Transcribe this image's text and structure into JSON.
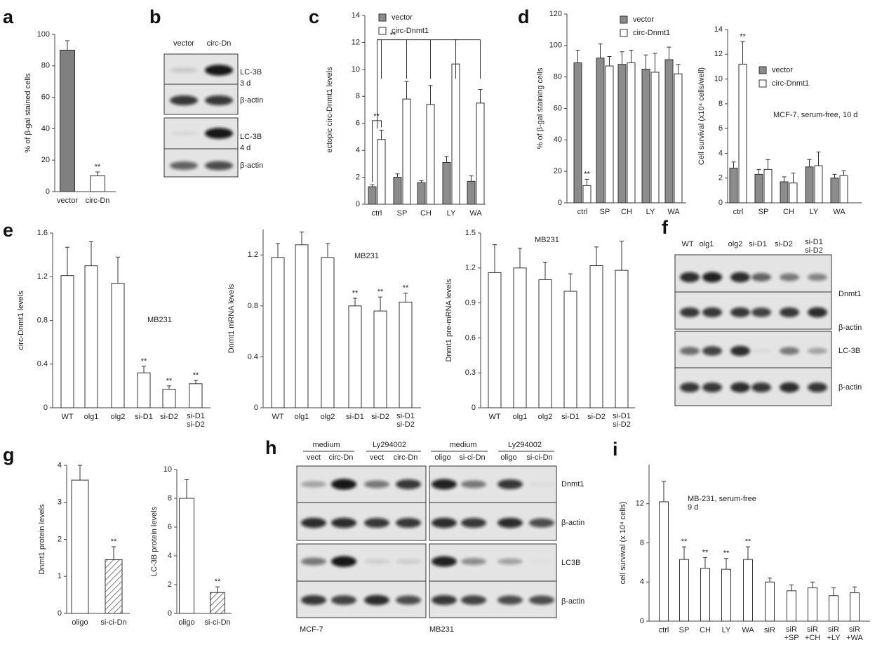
{
  "panels": [
    "a",
    "b",
    "c",
    "d",
    "e",
    "f",
    "g",
    "h",
    "i"
  ],
  "blots": [
    {
      "lanes": [
        "vector",
        "circ-Dn"
      ],
      "rows": [
        "LC-3B",
        "β-actin",
        "LC-3B",
        "β-actin"
      ],
      "times": [
        "3 d",
        "4 d"
      ]
    },
    {
      "lanes": [
        "WT",
        "olg1",
        "olg2",
        "si-D1",
        "si-D2",
        "si-D1\nsi-D2"
      ],
      "rows": [
        "Dnmt1",
        "β-actin",
        "LC-3B",
        "β-actin"
      ]
    },
    {
      "groups": [
        "medium",
        "Ly294002",
        "medium",
        "Ly294002"
      ],
      "lanes": [
        "vect",
        "circ-Dn",
        "vect",
        "circ-Dn",
        "oligo",
        "si-ci-Dn",
        "oligo",
        "si-ci-Dn"
      ],
      "rows": [
        "Dnmt1",
        "β-actin",
        "LC3B",
        "β-actin"
      ],
      "cell_lines": [
        "MCF-7",
        "MB231"
      ]
    }
  ],
  "chart_data": [
    {
      "type": "bar",
      "ylabel": "% of β-gal stained cells",
      "categories": [
        "vector",
        "circ-Dn"
      ],
      "values": [
        90,
        10
      ],
      "errors": [
        6,
        2.5
      ],
      "colors": [
        "#808080",
        "#ffffff"
      ],
      "significance": [
        null,
        "**"
      ],
      "ylim": [
        0,
        100
      ],
      "yticks": [
        0,
        20,
        40,
        60,
        80,
        100
      ]
    },
    {
      "type": "grouped_bar",
      "ylabel": "ectopic circ-Dnmt1 levels",
      "categories": [
        "ctrl",
        "SP",
        "CH",
        "LY",
        "WA"
      ],
      "series": [
        {
          "name": "vector",
          "color": "#8c8c8c",
          "values": [
            1.3,
            2.0,
            1.6,
            3.1,
            1.7
          ],
          "errors": [
            0.15,
            0.25,
            0.15,
            0.45,
            0.4
          ]
        },
        {
          "name": "circ-Dnmt1",
          "color": "#ffffff",
          "values": [
            4.8,
            7.8,
            7.4,
            10.4,
            7.5
          ],
          "errors": [
            0.7,
            1.3,
            1.4,
            1.8,
            1.0
          ]
        }
      ],
      "bracket_labels": [
        "**",
        "**"
      ],
      "ylim": [
        0,
        14
      ],
      "yticks": [
        0,
        2,
        4,
        6,
        8,
        10,
        12,
        14
      ]
    },
    {
      "type": "grouped_bar",
      "ylabel": "% of β-gal  staining cells",
      "categories": [
        "ctrl",
        "SP",
        "CH",
        "LY",
        "WA"
      ],
      "series": [
        {
          "name": "vector",
          "color": "#8c8c8c",
          "values": [
            89,
            92,
            88,
            85,
            91
          ],
          "errors": [
            8,
            9,
            8,
            9,
            8
          ]
        },
        {
          "name": "circ-Dnmt1",
          "color": "#ffffff",
          "values": [
            11,
            87,
            89,
            83,
            82
          ],
          "errors": [
            4,
            6,
            8,
            12,
            6
          ],
          "significance": [
            "**",
            null,
            null,
            null,
            null
          ]
        }
      ],
      "ylim": [
        0,
        120
      ],
      "yticks": [
        0,
        20,
        40,
        60,
        80,
        100,
        120
      ]
    },
    {
      "type": "grouped_bar",
      "ylabel": "Cell survival (x10⁴ cells/well)",
      "annotation": "MCF-7, serum-free, 10 d",
      "categories": [
        "ctrl",
        "SP",
        "CH",
        "LY",
        "WA"
      ],
      "series": [
        {
          "name": "vector",
          "color": "#8c8c8c",
          "values": [
            2.8,
            2.3,
            1.7,
            2.9,
            2.0
          ],
          "errors": [
            0.5,
            0.4,
            0.4,
            0.6,
            0.3
          ]
        },
        {
          "name": "circ-Dnmt1",
          "color": "#ffffff",
          "values": [
            11.2,
            2.7,
            1.6,
            3.0,
            2.2
          ],
          "errors": [
            1.8,
            0.8,
            0.8,
            1.1,
            0.4
          ],
          "significance": [
            "**",
            null,
            null,
            null,
            null
          ]
        }
      ],
      "ylim": [
        0,
        14
      ],
      "yticks": [
        0,
        2,
        4,
        6,
        8,
        10,
        12,
        14
      ]
    },
    {
      "type": "bar",
      "ylabel": "circ-Dnmt1  levels",
      "annotation": "MB231",
      "categories": [
        "WT",
        "olg1",
        "olg2",
        "si-D1",
        "si-D2",
        "si-D1\nsi-D2"
      ],
      "values": [
        1.21,
        1.3,
        1.14,
        0.32,
        0.17,
        0.22
      ],
      "errors": [
        0.26,
        0.22,
        0.24,
        0.06,
        0.03,
        0.03
      ],
      "significance": [
        null,
        null,
        null,
        "**",
        "**",
        "**"
      ],
      "ylim": [
        0,
        1.6
      ],
      "yticks": [
        0,
        0.4,
        0.8,
        1.2,
        1.6
      ]
    },
    {
      "type": "bar",
      "ylabel": "Dnmt1 mRNA levels",
      "annotation": "MB231",
      "categories": [
        "WT",
        "olg1",
        "olg2",
        "si-D1",
        "si-D2",
        "si-D1\nsi-D2"
      ],
      "values": [
        1.18,
        1.28,
        1.18,
        0.8,
        0.76,
        0.83
      ],
      "errors": [
        0.11,
        0.1,
        0.11,
        0.06,
        0.11,
        0.07
      ],
      "significance": [
        null,
        null,
        null,
        "**",
        "**",
        "**"
      ],
      "ylim": [
        0,
        1.4
      ],
      "yticks": [
        0,
        0.4,
        0.8,
        1.2
      ]
    },
    {
      "type": "bar",
      "ylabel": "Dnmt1 pre-mRNA levels",
      "annotation": "MB231",
      "categories": [
        "WT",
        "olg1",
        "olg2",
        "si-D1",
        "si-D2",
        "si-D1\nsi-D2"
      ],
      "values": [
        1.16,
        1.2,
        1.1,
        1.0,
        1.22,
        1.18
      ],
      "errors": [
        0.24,
        0.17,
        0.15,
        0.15,
        0.16,
        0.25
      ],
      "ylim": [
        0,
        1.5
      ],
      "yticks": [
        0,
        0.3,
        0.6,
        0.9,
        1.2,
        1.5
      ]
    },
    {
      "type": "bar",
      "ylabel": "Dnmt1 protein levels",
      "categories": [
        "oligo",
        "si-ci-Dn"
      ],
      "values": [
        3.6,
        1.45
      ],
      "errors": [
        0.4,
        0.35
      ],
      "fill_styles": [
        "solid",
        "hatched"
      ],
      "significance": [
        null,
        "**"
      ],
      "ylim": [
        0,
        4
      ],
      "yticks": [
        0,
        1,
        2,
        3,
        4
      ]
    },
    {
      "type": "bar",
      "ylabel": "LC-3B protein levels",
      "categories": [
        "oligo",
        "si-ci-Dn"
      ],
      "values": [
        8.0,
        1.45
      ],
      "errors": [
        1.3,
        0.4
      ],
      "fill_styles": [
        "solid",
        "hatched"
      ],
      "significance": [
        null,
        "**"
      ],
      "ylim": [
        0,
        10
      ],
      "yticks": [
        0,
        2,
        4,
        6,
        8,
        10
      ]
    },
    {
      "type": "bar",
      "ylabel": "cell survival (x 10⁴ cells)",
      "annotation": "MB-231, serum-free\n9 d",
      "categories": [
        "ctrl",
        "SP",
        "CH",
        "LY",
        "WA",
        "siR",
        "siR\n+SP",
        "siR\n+CH",
        "siR\n+LY",
        "siR\n+WA"
      ],
      "values": [
        12.2,
        6.3,
        5.4,
        5.3,
        6.3,
        4.0,
        3.1,
        3.4,
        2.6,
        2.9
      ],
      "errors": [
        2.1,
        1.3,
        1.1,
        1.1,
        1.3,
        0.4,
        0.6,
        0.6,
        0.8,
        0.6
      ],
      "significance": [
        null,
        "**",
        "**",
        "**",
        "**",
        null,
        null,
        null,
        null,
        null
      ],
      "ylim": [
        0,
        16
      ],
      "yticks": [
        0,
        4,
        8,
        12
      ]
    }
  ]
}
